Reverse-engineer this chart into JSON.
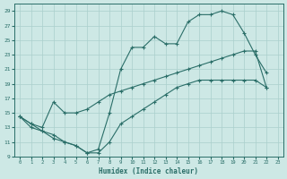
{
  "xlabel": "Humidex (Indice chaleur)",
  "xlim": [
    -0.5,
    23.5
  ],
  "ylim": [
    9,
    30
  ],
  "xticks": [
    0,
    1,
    2,
    3,
    4,
    5,
    6,
    7,
    8,
    9,
    10,
    11,
    12,
    13,
    14,
    15,
    16,
    17,
    18,
    19,
    20,
    21,
    22,
    23
  ],
  "yticks": [
    9,
    11,
    13,
    15,
    17,
    19,
    21,
    23,
    25,
    27,
    29
  ],
  "bg_color": "#cde8e5",
  "line_color": "#2a6e68",
  "grid_color": "#aacfcc",
  "line1_x": [
    0,
    1,
    2,
    3,
    4,
    5,
    6,
    7,
    8,
    9,
    10,
    11,
    12,
    13,
    14,
    15,
    16,
    17,
    18,
    19,
    20,
    21,
    22
  ],
  "line1_y": [
    14.5,
    13.5,
    13.0,
    16.5,
    15.0,
    15.0,
    15.5,
    16.5,
    17.5,
    18.0,
    18.5,
    19.0,
    19.5,
    20.0,
    20.5,
    21.0,
    21.5,
    22.0,
    22.5,
    23.0,
    23.5,
    23.5,
    18.5
  ],
  "line2_x": [
    0,
    1,
    2,
    3,
    4,
    5,
    6,
    7,
    8,
    9,
    10,
    11,
    12,
    13,
    14,
    15,
    16,
    17,
    18,
    19,
    20,
    21,
    22
  ],
  "line2_y": [
    14.5,
    13.5,
    12.5,
    12.0,
    11.0,
    10.5,
    9.5,
    10.0,
    15.0,
    21.0,
    24.0,
    24.0,
    25.5,
    24.5,
    24.5,
    27.5,
    28.5,
    28.5,
    29.0,
    28.5,
    26.0,
    23.0,
    20.5
  ],
  "line3_x": [
    0,
    1,
    2,
    3,
    4,
    5,
    6,
    7,
    8,
    9,
    10,
    11,
    12,
    13,
    14,
    15,
    16,
    17,
    18,
    19,
    20,
    21,
    22
  ],
  "line3_y": [
    14.5,
    13.0,
    12.5,
    11.5,
    11.0,
    10.5,
    9.5,
    9.5,
    11.0,
    13.5,
    14.5,
    15.5,
    16.5,
    17.5,
    18.5,
    19.0,
    19.5,
    19.5,
    19.5,
    19.5,
    19.5,
    19.5,
    18.5
  ]
}
